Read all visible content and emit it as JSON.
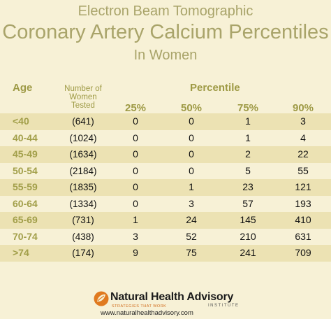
{
  "title": {
    "line1": "Electron Beam Tomographic",
    "line2": "Coronary Artery Calcium Percentiles",
    "line3": "In Women"
  },
  "table": {
    "age_header": "Age",
    "count_header": [
      "Number of",
      "Women",
      "Tested"
    ],
    "percentile_header": "Percentile",
    "percentile_columns": [
      "25%",
      "50%",
      "75%",
      "90%"
    ],
    "rows": [
      {
        "age": "<40",
        "count": "(641)",
        "p25": "0",
        "p50": "0",
        "p75": "1",
        "p90": "3"
      },
      {
        "age": "40-44",
        "count": "(1024)",
        "p25": "0",
        "p50": "0",
        "p75": "1",
        "p90": "4"
      },
      {
        "age": "45-49",
        "count": "(1634)",
        "p25": "0",
        "p50": "0",
        "p75": "2",
        "p90": "22"
      },
      {
        "age": "50-54",
        "count": "(2184)",
        "p25": "0",
        "p50": "0",
        "p75": "5",
        "p90": "55"
      },
      {
        "age": "55-59",
        "count": "(1835)",
        "p25": "0",
        "p50": "1",
        "p75": "23",
        "p90": "121"
      },
      {
        "age": "60-64",
        "count": "(1334)",
        "p25": "0",
        "p50": "3",
        "p75": "57",
        "p90": "193"
      },
      {
        "age": "65-69",
        "count": "(731)",
        "p25": "1",
        "p50": "24",
        "p75": "145",
        "p90": "410"
      },
      {
        "age": "70-74",
        "count": "(438)",
        "p25": "3",
        "p50": "52",
        "p75": "210",
        "p90": "631"
      },
      {
        "age": ">74",
        "count": "(174)",
        "p25": "9",
        "p50": "75",
        "p75": "241",
        "p90": "709"
      }
    ]
  },
  "logo": {
    "icon": "leaf-logo-icon",
    "name": "Natural Health Advisory",
    "tagline": "STRATEGIES THAT WORK",
    "institute": "INSTITUTE",
    "url": "www.naturalhealthadvisory.com"
  },
  "colors": {
    "background": "#f7f1d6",
    "row_shade": "#ece2b3",
    "title": "#a9a46a",
    "header": "#9e9a45",
    "logo_orange": "#e07a1f"
  }
}
